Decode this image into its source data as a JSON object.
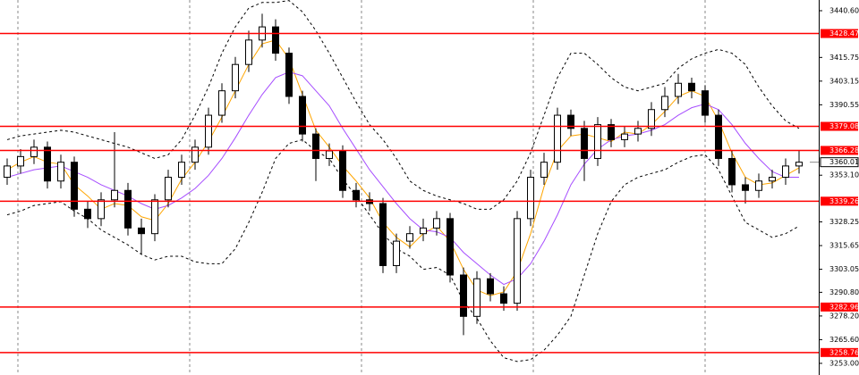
{
  "chart_data": {
    "type": "candlestick",
    "ylim": [
      3246.8,
      3446.3
    ],
    "yticks": [
      {
        "value": 3440.6,
        "label": "3440.60"
      },
      3415.75,
      3403.15,
      3390.55,
      {
        "value": 3353.1,
        "label": "3353.10"
      },
      3328.25,
      3315.65,
      3303.05,
      {
        "value": 3290.8,
        "label": "3290.80"
      },
      {
        "value": 3278.2,
        "label": "3278.20"
      },
      {
        "value": 3265.6,
        "label": "3265.60"
      },
      {
        "value": 3253,
        "label": "3253.00"
      }
    ],
    "levels": [
      3428.47,
      3379.08,
      3366.28,
      3339.26,
      3282.96,
      3258.76
    ],
    "level_color": "#ff0000",
    "current_price": 3360.01,
    "open": [
      3352,
      3358,
      3363,
      3368,
      3350,
      3360,
      3335,
      3330,
      3340,
      3345,
      3325,
      3322,
      3340,
      3352,
      3360,
      3368,
      3385,
      3398,
      3412,
      3425,
      3432,
      3418,
      3395,
      3375,
      3362,
      3366,
      3345,
      3340,
      3338,
      3305,
      3318,
      3322,
      3325,
      3330,
      3300,
      3278,
      3298,
      3290,
      3285,
      3330,
      3352,
      3360,
      3385,
      3378,
      3362,
      3380,
      3372,
      3375,
      3378,
      3388,
      3395,
      3402,
      3398,
      3385,
      3362,
      3348,
      3345,
      3350,
      3352,
      3358
    ],
    "high": [
      3362,
      3367,
      3372,
      3371,
      3364,
      3363,
      3339,
      3344,
      3376,
      3349,
      3330,
      3343,
      3356,
      3364,
      3372,
      3389,
      3402,
      3416,
      3430,
      3439,
      3436,
      3421,
      3398,
      3378,
      3370,
      3369,
      3349,
      3344,
      3341,
      3322,
      3326,
      3330,
      3334,
      3333,
      3304,
      3302,
      3301,
      3294,
      3334,
      3356,
      3365,
      3389,
      3388,
      3382,
      3384,
      3383,
      3379,
      3382,
      3392,
      3400,
      3407,
      3405,
      3401,
      3388,
      3366,
      3352,
      3354,
      3356,
      3362,
      3366
    ],
    "low": [
      3348,
      3354,
      3359,
      3346,
      3346,
      3331,
      3325,
      3326,
      3336,
      3321,
      3311,
      3318,
      3336,
      3348,
      3356,
      3364,
      3381,
      3394,
      3408,
      3421,
      3414,
      3391,
      3371,
      3350,
      3358,
      3341,
      3336,
      3334,
      3301,
      3301,
      3314,
      3318,
      3321,
      3296,
      3268,
      3274,
      3286,
      3281,
      3281,
      3326,
      3348,
      3356,
      3374,
      3350,
      3358,
      3368,
      3368,
      3371,
      3374,
      3384,
      3391,
      3394,
      3381,
      3358,
      3344,
      3338,
      3341,
      3346,
      3348,
      3354
    ],
    "close": [
      3358,
      3363,
      3368,
      3350,
      3360,
      3335,
      3330,
      3340,
      3345,
      3325,
      3322,
      3340,
      3352,
      3360,
      3368,
      3385,
      3398,
      3412,
      3425,
      3432,
      3418,
      3395,
      3375,
      3362,
      3366,
      3345,
      3340,
      3338,
      3305,
      3318,
      3322,
      3325,
      3330,
      3300,
      3278,
      3298,
      3290,
      3285,
      3330,
      3352,
      3360,
      3385,
      3378,
      3362,
      3380,
      3372,
      3375,
      3378,
      3388,
      3395,
      3402,
      3398,
      3385,
      3362,
      3348,
      3345,
      3350,
      3352,
      3358,
      3360.01
    ],
    "indicators": [
      {
        "color": "#ffa500",
        "dashed": false,
        "values": [
          3356,
          3360,
          3363,
          3360,
          3359,
          3348,
          3342,
          3335,
          3338,
          3337,
          3331,
          3329,
          3338,
          3351,
          3360,
          3371,
          3384,
          3398,
          3412,
          3423,
          3425,
          3415,
          3396,
          3377,
          3368,
          3358,
          3350,
          3341,
          3328,
          3320,
          3315,
          3322,
          3326,
          3318,
          3303,
          3292,
          3289,
          3291,
          3302,
          3322,
          3347,
          3366,
          3374,
          3375,
          3373,
          3371,
          3376,
          3375,
          3380,
          3387,
          3395,
          3398,
          3395,
          3382,
          3365,
          3352,
          3348,
          3349,
          3353,
          3357
        ]
      },
      {
        "color": "#a64dff",
        "dashed": false,
        "values": [
          3352,
          3354,
          3356,
          3357,
          3358,
          3355,
          3352,
          3348,
          3345,
          3342,
          3338,
          3335,
          3337,
          3341,
          3346,
          3353,
          3362,
          3373,
          3385,
          3396,
          3405,
          3408,
          3406,
          3398,
          3390,
          3378,
          3367,
          3356,
          3347,
          3338,
          3330,
          3324,
          3323,
          3320,
          3312,
          3306,
          3300,
          3295,
          3298,
          3306,
          3318,
          3332,
          3348,
          3359,
          3367,
          3372,
          3374,
          3375,
          3377,
          3380,
          3385,
          3389,
          3391,
          3388,
          3380,
          3370,
          3362,
          3355,
          3352,
          3352
        ]
      },
      {
        "color": "#000000",
        "dashed": true,
        "values": [
          3372,
          3374,
          3375,
          3376,
          3377,
          3376,
          3374,
          3372,
          3370,
          3368,
          3365,
          3362,
          3364,
          3372,
          3385,
          3400,
          3418,
          3432,
          3442,
          3445,
          3445,
          3446,
          3440,
          3430,
          3418,
          3405,
          3392,
          3380,
          3372,
          3362,
          3350,
          3345,
          3342,
          3340,
          3338,
          3335,
          3335,
          3340,
          3350,
          3365,
          3385,
          3405,
          3418,
          3418,
          3412,
          3405,
          3400,
          3398,
          3400,
          3402,
          3410,
          3415,
          3418,
          3420,
          3418,
          3412,
          3400,
          3390,
          3382,
          3378
        ]
      },
      {
        "color": "#000000",
        "dashed": true,
        "values": [
          3332,
          3334,
          3337,
          3338,
          3339,
          3334,
          3330,
          3324,
          3320,
          3316,
          3311,
          3308,
          3310,
          3310,
          3307,
          3306,
          3306,
          3314,
          3328,
          3344,
          3362,
          3370,
          3372,
          3366,
          3362,
          3351,
          3342,
          3332,
          3322,
          3314,
          3310,
          3303,
          3304,
          3300,
          3286,
          3277,
          3265,
          3256,
          3254,
          3255,
          3260,
          3268,
          3278,
          3300,
          3322,
          3339,
          3348,
          3352,
          3354,
          3356,
          3360,
          3363,
          3364,
          3356,
          3342,
          3328,
          3324,
          3320,
          3322,
          3326
        ]
      }
    ]
  }
}
